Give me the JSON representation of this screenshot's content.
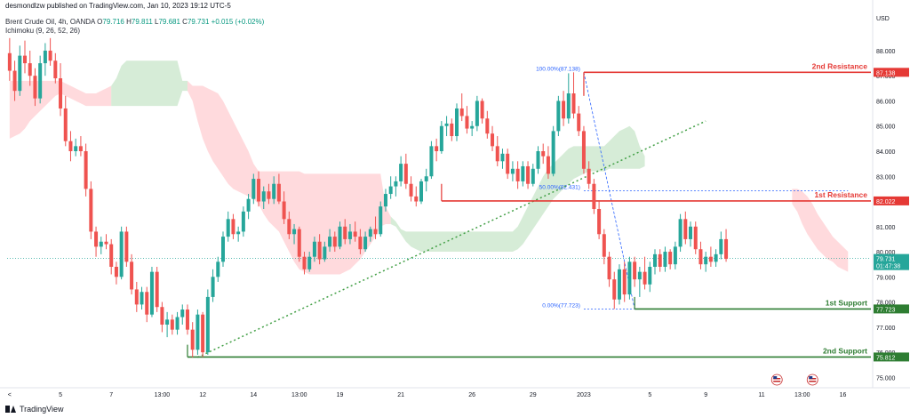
{
  "header": {
    "publisher_line": "desmondlzw published on TradingView.com, Jan 10, 2023 19:12 UTC-5",
    "symbol_line": "Brent Crude Oil, 4h, OANDA",
    "ohlc": {
      "o_label": "O",
      "o": "79.716",
      "h_label": "H",
      "h": "79.811",
      "l_label": "L",
      "l": "79.681",
      "c_label": "C",
      "c": "79.731",
      "change": "+0.015 (+0.02%)"
    },
    "indicator_line": "Ichimoku (9, 26, 52, 26)"
  },
  "footer": {
    "brand": "TradingView"
  },
  "colors": {
    "up": "#26a69a",
    "down": "#ef5350",
    "resistance": "#e53935",
    "support": "#2e7d32",
    "trend": "#43a047",
    "fib": "#2962ff",
    "cloud_bull": "#c8e6c9",
    "cloud_bear": "#ffcdd2",
    "last_price": "#26a69a"
  },
  "chart_data": {
    "type": "candlestick",
    "currency": "USD",
    "ylim": [
      74.8,
      88.6
    ],
    "y_ticks": [
      75.0,
      76.0,
      77.0,
      78.0,
      79.0,
      80.0,
      81.0,
      82.0,
      83.0,
      84.0,
      85.0,
      86.0,
      87.0,
      88.0
    ],
    "y_tick_labels": [
      "75.000",
      "76.000",
      "77.000",
      "78.000",
      "79.000",
      "80.000",
      "81.000",
      "82.000",
      "83.000",
      "84.000",
      "85.000",
      "86.000",
      "87.000",
      "88.000"
    ],
    "x_ticks": [
      {
        "i": 0,
        "label": "<"
      },
      {
        "i": 10,
        "label": "5"
      },
      {
        "i": 20,
        "label": "7"
      },
      {
        "i": 30,
        "label": "13:00"
      },
      {
        "i": 38,
        "label": "12"
      },
      {
        "i": 48,
        "label": "14"
      },
      {
        "i": 57,
        "label": "13:00"
      },
      {
        "i": 65,
        "label": "19"
      },
      {
        "i": 77,
        "label": "21"
      },
      {
        "i": 91,
        "label": "26"
      },
      {
        "i": 103,
        "label": "29"
      },
      {
        "i": 113,
        "label": "2023"
      },
      {
        "i": 126,
        "label": "5"
      },
      {
        "i": 137,
        "label": "9"
      },
      {
        "i": 148,
        "label": "11"
      },
      {
        "i": 156,
        "label": "13:00"
      },
      {
        "i": 164,
        "label": "16"
      }
    ],
    "candles": [
      [
        87.9,
        88.5,
        86.8,
        87.2
      ],
      [
        87.2,
        87.6,
        86.0,
        86.4
      ],
      [
        86.4,
        88.2,
        86.2,
        87.8
      ],
      [
        87.8,
        88.4,
        87.1,
        87.5
      ],
      [
        87.5,
        88.0,
        86.6,
        87.0
      ],
      [
        87.0,
        87.3,
        85.8,
        86.1
      ],
      [
        86.1,
        87.8,
        85.9,
        87.5
      ],
      [
        87.5,
        88.3,
        87.0,
        88.0
      ],
      [
        88.0,
        88.5,
        87.4,
        87.6
      ],
      [
        87.6,
        87.9,
        86.7,
        86.9
      ],
      [
        86.9,
        87.5,
        85.4,
        85.7
      ],
      [
        85.7,
        86.2,
        84.2,
        84.4
      ],
      [
        84.4,
        84.8,
        83.6,
        84.0
      ],
      [
        84.0,
        84.5,
        83.8,
        84.2
      ],
      [
        84.2,
        84.6,
        83.8,
        84.0
      ],
      [
        84.0,
        84.3,
        82.2,
        82.5
      ],
      [
        82.5,
        82.8,
        80.5,
        80.8
      ],
      [
        80.8,
        81.0,
        79.8,
        80.2
      ],
      [
        80.2,
        80.6,
        79.9,
        80.4
      ],
      [
        80.4,
        80.7,
        80.1,
        80.3
      ],
      [
        80.3,
        80.5,
        79.1,
        79.4
      ],
      [
        79.4,
        79.6,
        78.7,
        79.0
      ],
      [
        79.0,
        81.0,
        78.9,
        80.8
      ],
      [
        80.8,
        81.0,
        79.4,
        79.6
      ],
      [
        79.6,
        79.9,
        78.3,
        78.5
      ],
      [
        78.5,
        78.8,
        77.6,
        77.9
      ],
      [
        77.9,
        78.6,
        77.7,
        78.4
      ],
      [
        78.4,
        78.6,
        77.2,
        77.5
      ],
      [
        77.5,
        79.4,
        77.4,
        79.2
      ],
      [
        79.2,
        79.4,
        77.6,
        77.8
      ],
      [
        77.8,
        78.0,
        76.8,
        77.1
      ],
      [
        77.1,
        77.6,
        76.6,
        77.3
      ],
      [
        77.3,
        77.5,
        76.7,
        76.9
      ],
      [
        76.9,
        77.6,
        76.7,
        77.4
      ],
      [
        77.4,
        77.9,
        77.1,
        77.7
      ],
      [
        77.7,
        77.9,
        76.7,
        76.9
      ],
      [
        76.9,
        77.2,
        75.8,
        76.1
      ],
      [
        76.1,
        77.7,
        75.9,
        77.5
      ],
      [
        77.5,
        77.6,
        75.81,
        76.0
      ],
      [
        76.0,
        78.5,
        75.9,
        78.2
      ],
      [
        78.2,
        79.3,
        78.0,
        79.0
      ],
      [
        79.0,
        79.8,
        78.8,
        79.6
      ],
      [
        79.6,
        80.8,
        79.4,
        80.6
      ],
      [
        80.6,
        81.6,
        80.4,
        81.3
      ],
      [
        81.3,
        81.5,
        80.5,
        80.7
      ],
      [
        80.7,
        81.0,
        80.4,
        80.8
      ],
      [
        80.8,
        81.8,
        80.6,
        81.6
      ],
      [
        81.6,
        82.3,
        81.3,
        82.1
      ],
      [
        82.1,
        83.1,
        81.9,
        82.9
      ],
      [
        82.9,
        83.2,
        81.8,
        82.0
      ],
      [
        82.0,
        82.6,
        81.7,
        82.4
      ],
      [
        82.4,
        82.7,
        81.9,
        82.1
      ],
      [
        82.1,
        83.0,
        81.9,
        82.7
      ],
      [
        82.7,
        83.1,
        81.9,
        82.0
      ],
      [
        82.0,
        82.4,
        81.1,
        81.3
      ],
      [
        81.3,
        81.6,
        80.5,
        80.7
      ],
      [
        80.7,
        81.1,
        80.3,
        80.9
      ],
      [
        80.9,
        81.0,
        79.6,
        79.8
      ],
      [
        79.8,
        80.0,
        79.1,
        79.3
      ],
      [
        79.3,
        80.0,
        79.2,
        79.8
      ],
      [
        79.8,
        80.6,
        79.6,
        80.4
      ],
      [
        80.4,
        80.7,
        79.5,
        79.7
      ],
      [
        79.7,
        80.4,
        79.6,
        80.2
      ],
      [
        80.2,
        80.9,
        80.0,
        80.6
      ],
      [
        80.6,
        80.8,
        80.0,
        80.2
      ],
      [
        80.2,
        81.2,
        80.1,
        81.0
      ],
      [
        81.0,
        81.3,
        80.3,
        80.5
      ],
      [
        80.5,
        81.1,
        80.3,
        80.8
      ],
      [
        80.8,
        81.2,
        80.4,
        80.6
      ],
      [
        80.6,
        80.9,
        79.9,
        80.1
      ],
      [
        80.1,
        80.8,
        80.0,
        80.6
      ],
      [
        80.6,
        81.0,
        80.4,
        80.9
      ],
      [
        80.9,
        81.4,
        80.5,
        80.7
      ],
      [
        80.7,
        82.0,
        80.6,
        81.8
      ],
      [
        81.8,
        82.5,
        81.6,
        82.3
      ],
      [
        82.3,
        83.0,
        82.1,
        82.6
      ],
      [
        82.6,
        83.0,
        82.2,
        82.8
      ],
      [
        82.8,
        83.8,
        82.6,
        83.5
      ],
      [
        83.5,
        83.9,
        82.5,
        82.7
      ],
      [
        82.7,
        83.0,
        82.0,
        82.2
      ],
      [
        82.2,
        82.6,
        81.8,
        82.0
      ],
      [
        82.0,
        82.9,
        81.9,
        82.8
      ],
      [
        82.8,
        83.3,
        82.4,
        83.0
      ],
      [
        83.0,
        84.4,
        82.9,
        84.2
      ],
      [
        84.2,
        84.5,
        83.6,
        84.0
      ],
      [
        84.0,
        85.2,
        83.9,
        85.0
      ],
      [
        85.0,
        85.4,
        84.6,
        85.1
      ],
      [
        85.1,
        85.3,
        84.4,
        84.6
      ],
      [
        84.6,
        85.9,
        84.4,
        85.7
      ],
      [
        85.7,
        86.3,
        85.2,
        85.4
      ],
      [
        85.4,
        85.8,
        84.7,
        84.9
      ],
      [
        84.9,
        85.2,
        84.6,
        85.0
      ],
      [
        85.0,
        86.2,
        84.8,
        86.0
      ],
      [
        86.0,
        86.1,
        85.1,
        85.3
      ],
      [
        85.3,
        85.6,
        84.5,
        84.7
      ],
      [
        84.7,
        85.0,
        84.0,
        84.2
      ],
      [
        84.2,
        84.6,
        83.4,
        83.6
      ],
      [
        83.6,
        84.1,
        83.3,
        83.9
      ],
      [
        83.9,
        84.1,
        82.9,
        83.1
      ],
      [
        83.1,
        83.6,
        82.8,
        83.3
      ],
      [
        83.3,
        83.6,
        82.5,
        82.8
      ],
      [
        82.8,
        83.6,
        82.6,
        83.4
      ],
      [
        83.4,
        83.6,
        82.5,
        82.7
      ],
      [
        82.7,
        83.5,
        82.6,
        83.3
      ],
      [
        83.3,
        84.2,
        83.1,
        84.0
      ],
      [
        84.0,
        84.3,
        83.5,
        83.8
      ],
      [
        83.8,
        84.2,
        82.9,
        83.1
      ],
      [
        83.1,
        85.0,
        83.0,
        84.8
      ],
      [
        84.8,
        86.2,
        84.6,
        86.0
      ],
      [
        86.0,
        86.4,
        85.0,
        85.3
      ],
      [
        85.3,
        87.1,
        85.1,
        86.3
      ],
      [
        86.3,
        87.138,
        85.3,
        85.5
      ],
      [
        85.5,
        85.8,
        84.6,
        84.8
      ],
      [
        84.8,
        85.0,
        83.1,
        83.3
      ],
      [
        83.3,
        83.6,
        82.5,
        82.7
      ],
      [
        82.7,
        82.9,
        81.5,
        81.7
      ],
      [
        81.7,
        82.0,
        80.5,
        80.7
      ],
      [
        80.7,
        80.9,
        79.5,
        79.8
      ],
      [
        79.8,
        80.0,
        78.6,
        78.9
      ],
      [
        78.9,
        79.2,
        77.723,
        78.1
      ],
      [
        78.1,
        79.5,
        77.9,
        79.3
      ],
      [
        79.3,
        79.6,
        78.0,
        78.3
      ],
      [
        78.3,
        79.8,
        78.1,
        79.6
      ],
      [
        79.6,
        79.8,
        78.6,
        78.9
      ],
      [
        78.9,
        79.4,
        78.2,
        79.2
      ],
      [
        79.2,
        79.8,
        78.5,
        78.7
      ],
      [
        78.7,
        79.6,
        78.4,
        79.4
      ],
      [
        79.4,
        80.1,
        79.1,
        79.9
      ],
      [
        79.9,
        80.1,
        79.2,
        79.4
      ],
      [
        79.4,
        80.2,
        79.2,
        80.0
      ],
      [
        80.0,
        80.1,
        79.3,
        79.5
      ],
      [
        79.5,
        80.4,
        79.3,
        80.2
      ],
      [
        80.2,
        81.5,
        80.0,
        81.3
      ],
      [
        81.3,
        81.6,
        80.3,
        80.5
      ],
      [
        80.5,
        81.2,
        80.2,
        81.0
      ],
      [
        81.0,
        81.2,
        79.9,
        80.1
      ],
      [
        80.1,
        80.4,
        79.3,
        79.5
      ],
      [
        79.5,
        80.0,
        79.2,
        79.8
      ],
      [
        79.8,
        80.2,
        79.4,
        79.6
      ],
      [
        79.6,
        80.1,
        79.4,
        79.9
      ],
      [
        79.9,
        80.8,
        79.7,
        80.5
      ],
      [
        80.5,
        80.9,
        79.6,
        79.716
      ]
    ],
    "cloud": [
      [
        84.5,
        86.8
      ],
      [
        84.6,
        86.8
      ],
      [
        84.7,
        86.8
      ],
      [
        84.9,
        86.8
      ],
      [
        85.2,
        86.8
      ],
      [
        85.4,
        86.8
      ],
      [
        85.6,
        86.8
      ],
      [
        85.8,
        86.8
      ],
      [
        86.0,
        86.8
      ],
      [
        86.2,
        86.8
      ],
      [
        86.3,
        86.8
      ],
      [
        86.2,
        86.7
      ],
      [
        86.1,
        86.6
      ],
      [
        86.0,
        86.5
      ],
      [
        85.9,
        86.4
      ],
      [
        85.8,
        86.3
      ],
      [
        85.8,
        86.3
      ],
      [
        85.8,
        86.3
      ],
      [
        85.8,
        86.4
      ],
      [
        85.8,
        86.5
      ],
      [
        85.8,
        86.6
      ],
      [
        85.8,
        86.9
      ],
      [
        85.8,
        87.4
      ],
      [
        85.8,
        87.6
      ],
      [
        85.8,
        87.6
      ],
      [
        85.8,
        87.6
      ],
      [
        85.8,
        87.6
      ],
      [
        85.8,
        87.6
      ],
      [
        85.8,
        87.6
      ],
      [
        85.8,
        87.6
      ],
      [
        85.8,
        87.6
      ],
      [
        85.8,
        87.6
      ],
      [
        85.8,
        87.6
      ],
      [
        85.8,
        87.6
      ],
      [
        86.4,
        86.8
      ],
      [
        86.4,
        86.8
      ],
      [
        86.0,
        86.6
      ],
      [
        85.2,
        86.6
      ],
      [
        84.5,
        86.6
      ],
      [
        84.0,
        86.5
      ],
      [
        83.6,
        86.4
      ],
      [
        83.3,
        86.3
      ],
      [
        83.0,
        86.0
      ],
      [
        82.7,
        85.6
      ],
      [
        82.5,
        85.2
      ],
      [
        82.4,
        84.8
      ],
      [
        82.3,
        84.4
      ],
      [
        82.2,
        84.0
      ],
      [
        82.1,
        83.5
      ],
      [
        81.9,
        83.2
      ],
      [
        81.5,
        83.2
      ],
      [
        81.2,
        83.2
      ],
      [
        81.0,
        83.2
      ],
      [
        80.8,
        83.2
      ],
      [
        80.4,
        83.2
      ],
      [
        80.0,
        83.2
      ],
      [
        79.6,
        83.2
      ],
      [
        79.3,
        83.2
      ],
      [
        79.2,
        83.1
      ],
      [
        79.1,
        83.1
      ],
      [
        79.1,
        83.1
      ],
      [
        79.1,
        83.1
      ],
      [
        79.1,
        83.1
      ],
      [
        79.1,
        83.1
      ],
      [
        79.1,
        83.1
      ],
      [
        79.1,
        83.1
      ],
      [
        79.2,
        83.1
      ],
      [
        79.3,
        83.1
      ],
      [
        79.5,
        83.1
      ],
      [
        79.7,
        83.1
      ],
      [
        80.0,
        83.1
      ],
      [
        80.3,
        83.1
      ],
      [
        80.6,
        83.1
      ],
      [
        81.0,
        83.1
      ],
      [
        81.1,
        81.8
      ],
      [
        81.1,
        81.4
      ],
      [
        81.0,
        81.2
      ],
      [
        80.7,
        80.9
      ],
      [
        80.4,
        80.8
      ],
      [
        80.2,
        80.8
      ],
      [
        80.1,
        80.8
      ],
      [
        80.0,
        80.8
      ],
      [
        80.0,
        80.8
      ],
      [
        80.0,
        80.8
      ],
      [
        80.0,
        80.8
      ],
      [
        80.0,
        80.8
      ],
      [
        80.0,
        80.8
      ],
      [
        80.0,
        80.8
      ],
      [
        80.0,
        80.8
      ],
      [
        80.0,
        80.8
      ],
      [
        80.0,
        80.8
      ],
      [
        80.0,
        80.8
      ],
      [
        80.0,
        80.8
      ],
      [
        80.0,
        80.8
      ],
      [
        80.0,
        80.8
      ],
      [
        80.0,
        80.8
      ],
      [
        80.0,
        80.8
      ],
      [
        80.0,
        80.8
      ],
      [
        80.0,
        80.8
      ],
      [
        80.0,
        80.8
      ],
      [
        80.1,
        81.0
      ],
      [
        80.3,
        81.4
      ],
      [
        80.6,
        81.8
      ],
      [
        80.9,
        82.2
      ],
      [
        81.2,
        82.6
      ],
      [
        81.5,
        83.0
      ],
      [
        81.8,
        83.3
      ],
      [
        82.1,
        83.5
      ],
      [
        82.3,
        83.7
      ],
      [
        82.5,
        83.9
      ],
      [
        82.7,
        84.1
      ],
      [
        82.9,
        84.2
      ],
      [
        83.0,
        84.2
      ],
      [
        83.1,
        84.2
      ],
      [
        83.2,
        84.2
      ],
      [
        83.2,
        84.2
      ],
      [
        83.2,
        84.2
      ],
      [
        83.2,
        84.2
      ],
      [
        83.3,
        84.4
      ],
      [
        83.3,
        84.6
      ],
      [
        83.3,
        84.8
      ],
      [
        83.3,
        84.9
      ],
      [
        83.3,
        85.0
      ],
      [
        83.3,
        84.8
      ],
      [
        83.3,
        84.2
      ],
      [
        83.4,
        83.8
      ]
    ],
    "cloud_start_index": 0,
    "bear_cloud_tail": [
      [
        82.5,
        82.5
      ],
      [
        82.2,
        82.5
      ],
      [
        81.7,
        82.4
      ],
      [
        81.3,
        82.2
      ],
      [
        81.0,
        81.9
      ],
      [
        80.7,
        81.5
      ],
      [
        80.5,
        81.2
      ],
      [
        80.3,
        80.9
      ],
      [
        80.2,
        80.6
      ],
      [
        80.0,
        80.4
      ],
      [
        79.9,
        80.2
      ],
      [
        79.8,
        80.0
      ]
    ],
    "resistance_2": {
      "label": "2nd Resistance",
      "value": 87.138,
      "value_label": "87.138",
      "from": 113
    },
    "resistance_1": {
      "label": "1st Resistance",
      "value": 82.022,
      "value_label": "82.022",
      "from": 85
    },
    "support_1": {
      "label": "1st Support",
      "value": 77.723,
      "value_label": "77.723",
      "from": 123
    },
    "support_2": {
      "label": "2nd Support",
      "value": 75.812,
      "value_label": "75.812",
      "from": 35
    },
    "fib": [
      {
        "label": "100.00%(87.138)",
        "value": 87.138,
        "from": 113,
        "to": 165
      },
      {
        "label": "50.00%(82.431)",
        "value": 82.431,
        "from": 113,
        "to": 165
      },
      {
        "label": "0.00%(77.723)",
        "value": 77.723,
        "from": 113,
        "to": 123
      }
    ],
    "trendline": {
      "x1": 37,
      "y1": 75.8,
      "x2": 137,
      "y2": 85.2
    },
    "last_price": {
      "value": 79.731,
      "value_label": "79.731",
      "countdown": "01:47:38"
    },
    "event_icons_at": [
      151,
      158
    ]
  }
}
